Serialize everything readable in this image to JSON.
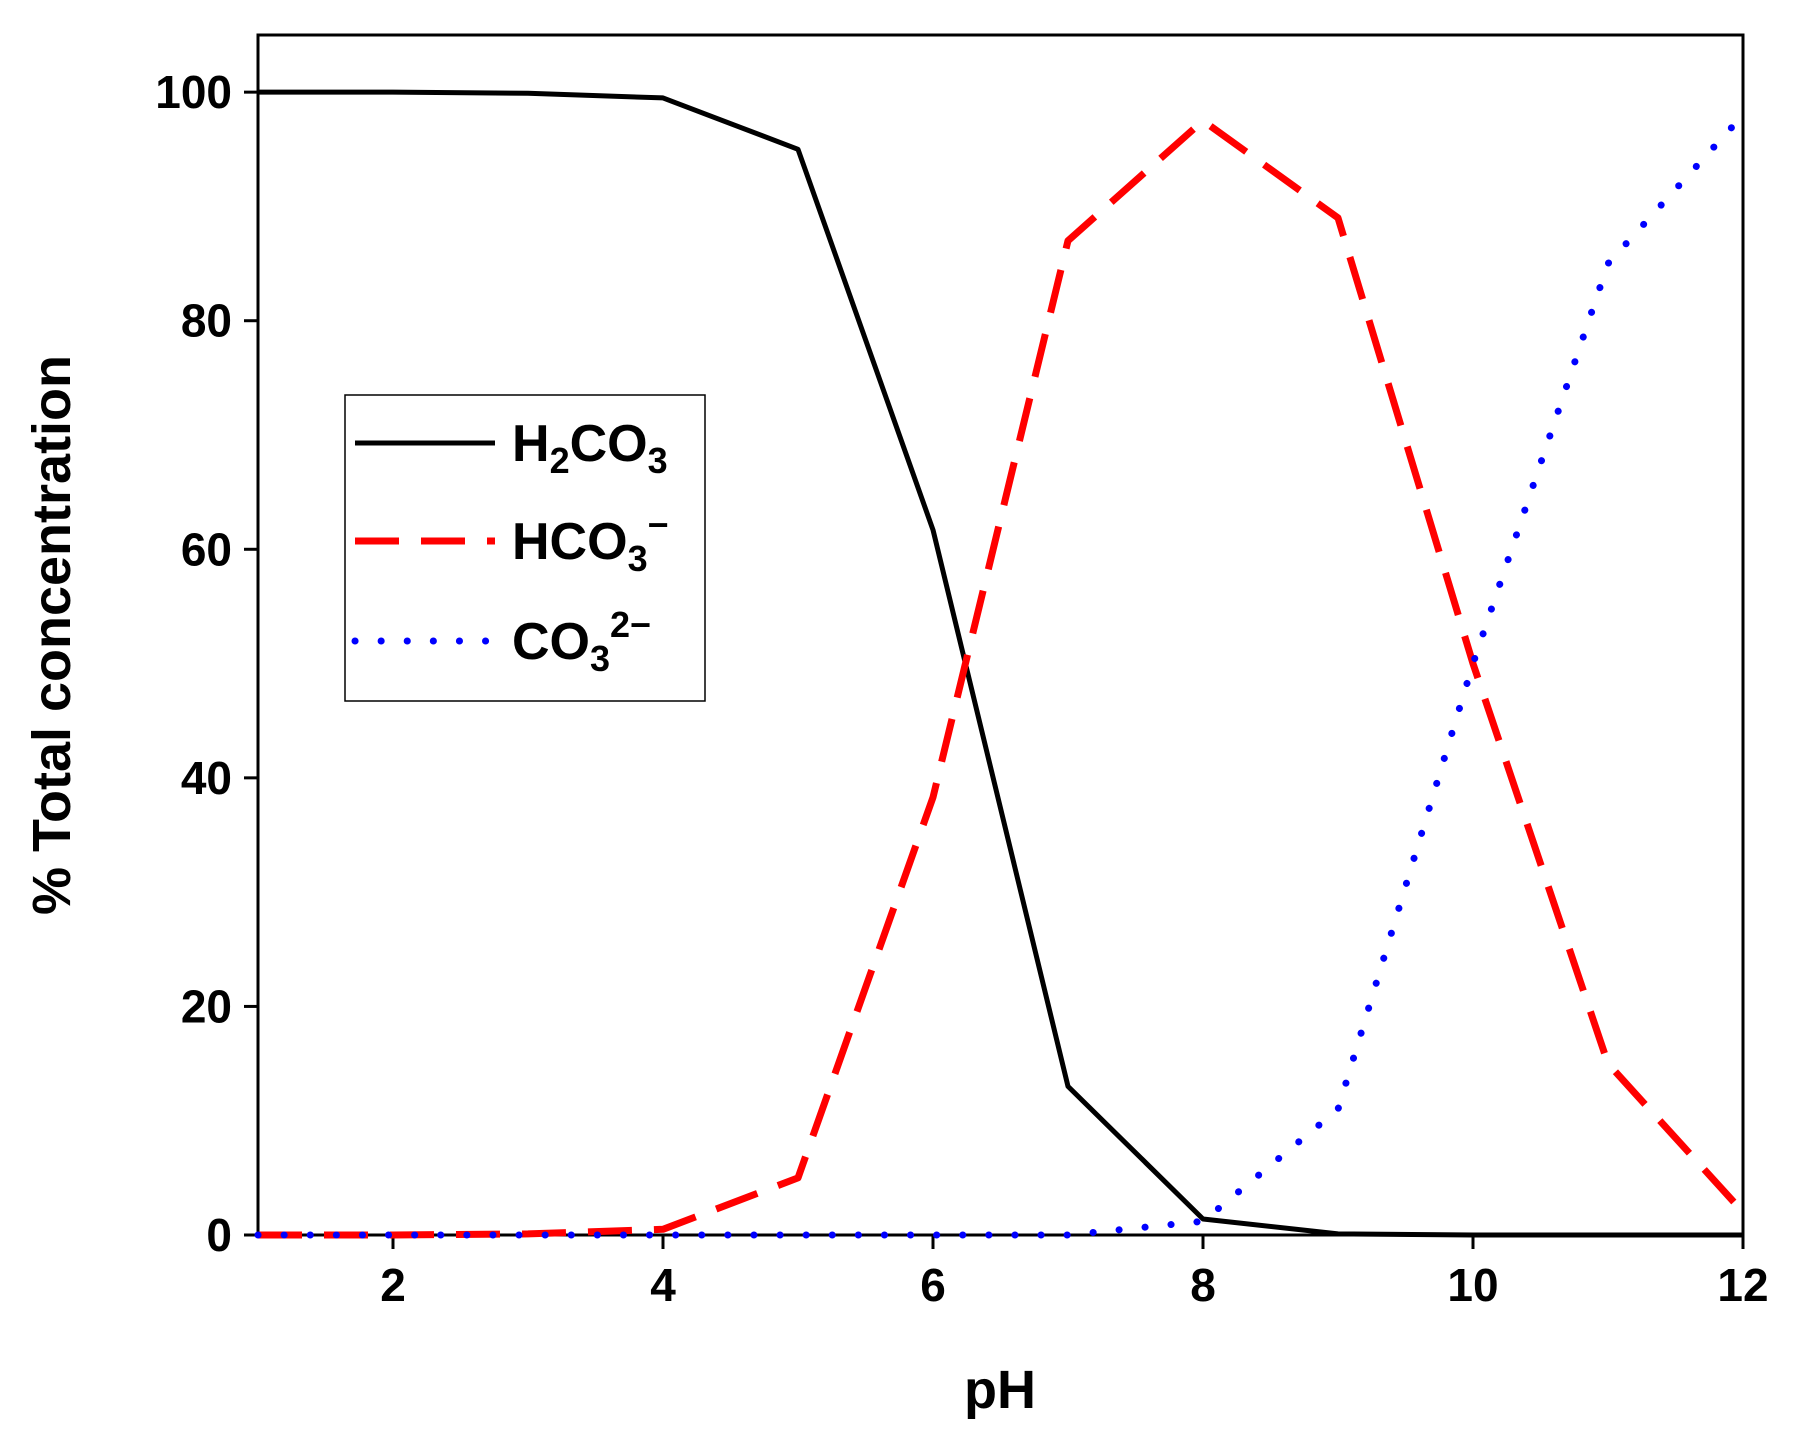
{
  "chart_data": {
    "type": "line",
    "title": "",
    "xlabel": "pH",
    "ylabel": "% Total concentration",
    "xlim": [
      1,
      12
    ],
    "ylim": [
      0,
      105
    ],
    "xticks": [
      2,
      4,
      6,
      8,
      10,
      12
    ],
    "yticks": [
      0,
      20,
      40,
      60,
      80,
      100
    ],
    "xtick_labels": [
      "2",
      "4",
      "6",
      "8",
      "10",
      "12"
    ],
    "ytick_labels": [
      "0",
      "20",
      "40",
      "60",
      "80",
      "100"
    ],
    "grid": false,
    "legend_position": "center-left",
    "x": [
      1,
      2,
      3,
      4,
      5,
      6,
      7,
      8,
      9,
      10,
      11,
      12
    ],
    "series": [
      {
        "name": "H2CO3",
        "legend_base": "H",
        "legend_sub": "2",
        "legend_mid": "CO",
        "legend_sub2": "3",
        "legend_sup": "",
        "color": "#000000",
        "style": "solid",
        "values": [
          100,
          100,
          99.9,
          99.5,
          95,
          61.7,
          13,
          1.4,
          0.1,
          0,
          0,
          0
        ]
      },
      {
        "name": "HCO3−",
        "legend_base": "",
        "legend_sub": "",
        "legend_mid": "HCO",
        "legend_sub2": "3",
        "legend_sup": "−",
        "color": "#ff0000",
        "style": "dashed",
        "values": [
          0,
          0,
          0.1,
          0.5,
          5,
          38.3,
          87,
          97.5,
          89,
          50,
          15,
          2
        ]
      },
      {
        "name": "CO32−",
        "legend_base": "",
        "legend_sub": "",
        "legend_mid": "CO",
        "legend_sub2": "3",
        "legend_sup": "2−",
        "color": "#0000ff",
        "style": "dotted",
        "values": [
          0,
          0,
          0,
          0,
          0,
          0,
          0,
          1.2,
          11,
          50,
          85,
          98
        ]
      }
    ]
  }
}
